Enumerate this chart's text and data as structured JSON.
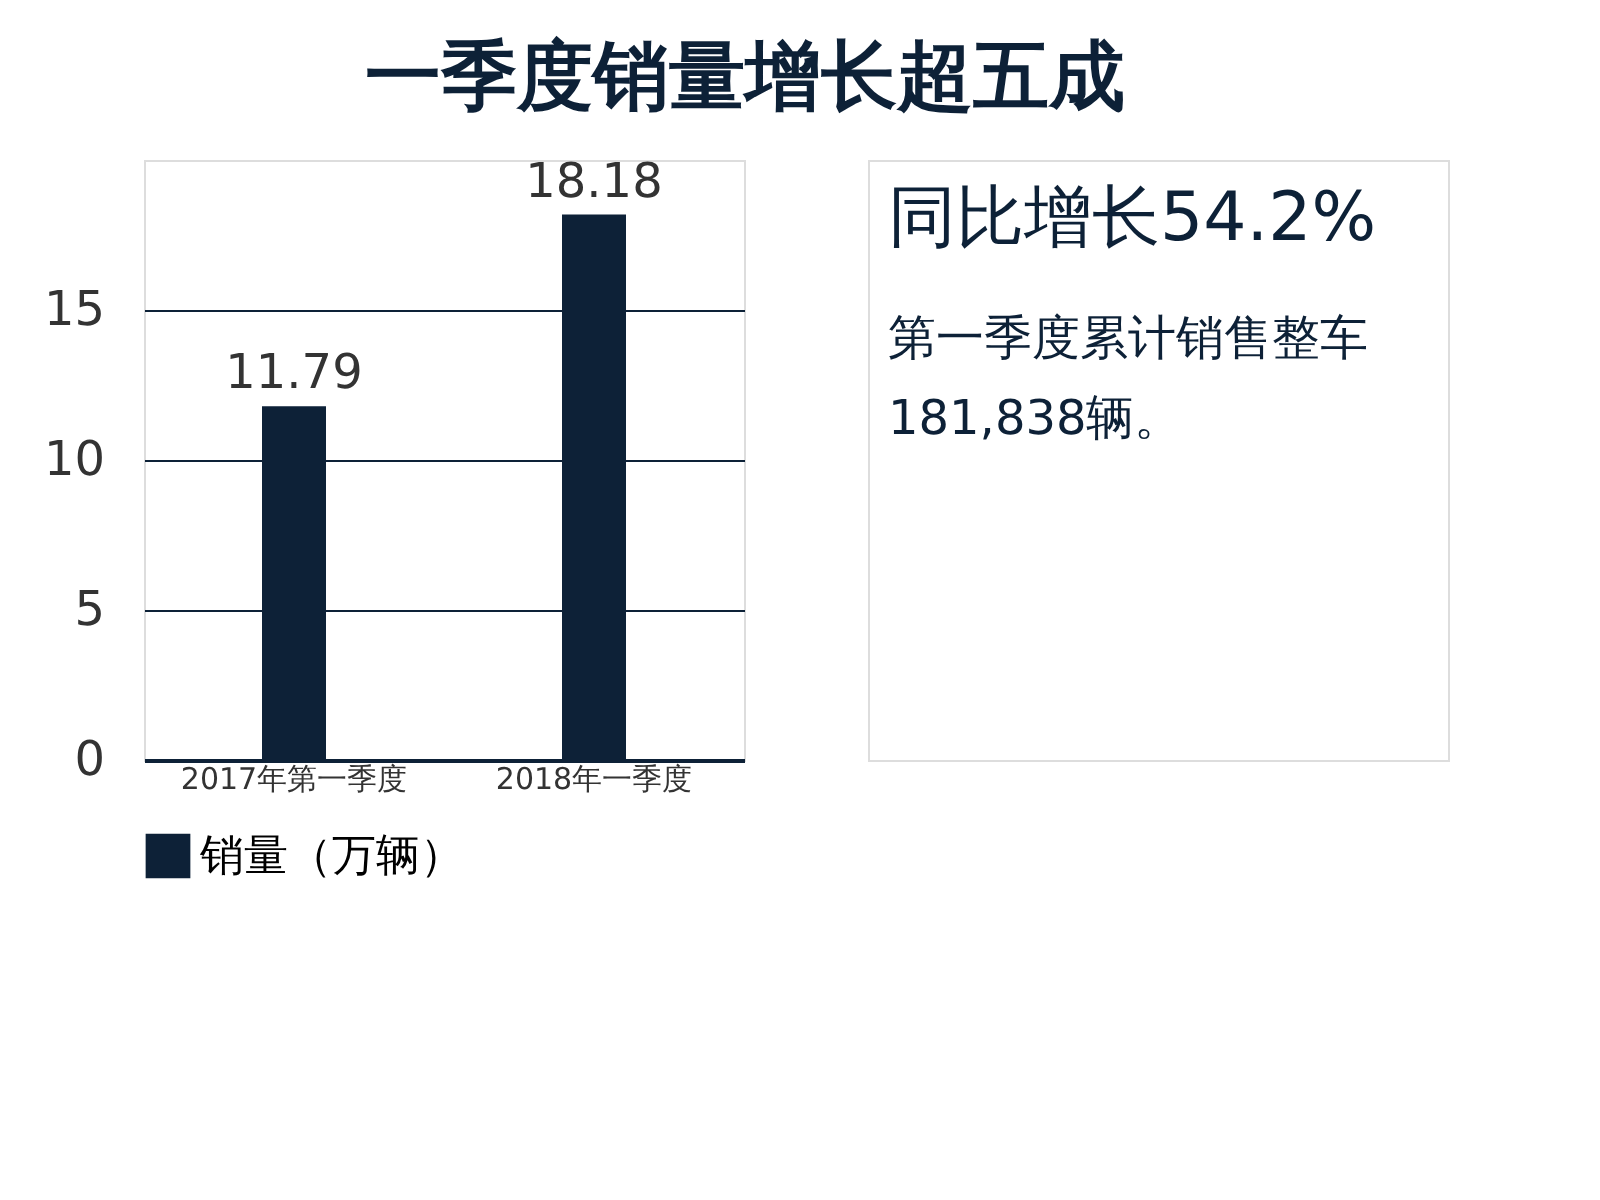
{
  "chart_data": {
    "type": "bar",
    "title": "一季度销量增长超五成",
    "categories": [
      "2017年第一季度",
      "2018年一季度"
    ],
    "series": [
      {
        "name": "销量（万辆）",
        "color": "#0d2137",
        "values": [
          11.79,
          18.18
        ]
      }
    ],
    "ylim": [
      0,
      20
    ],
    "yticks": [
      0,
      5,
      10,
      15
    ],
    "grid": "y",
    "data_labels": true,
    "legend": "bottom",
    "annotations": [
      "同比增长54.2%",
      "第一季度累计销售整车181,838辆。"
    ]
  }
}
